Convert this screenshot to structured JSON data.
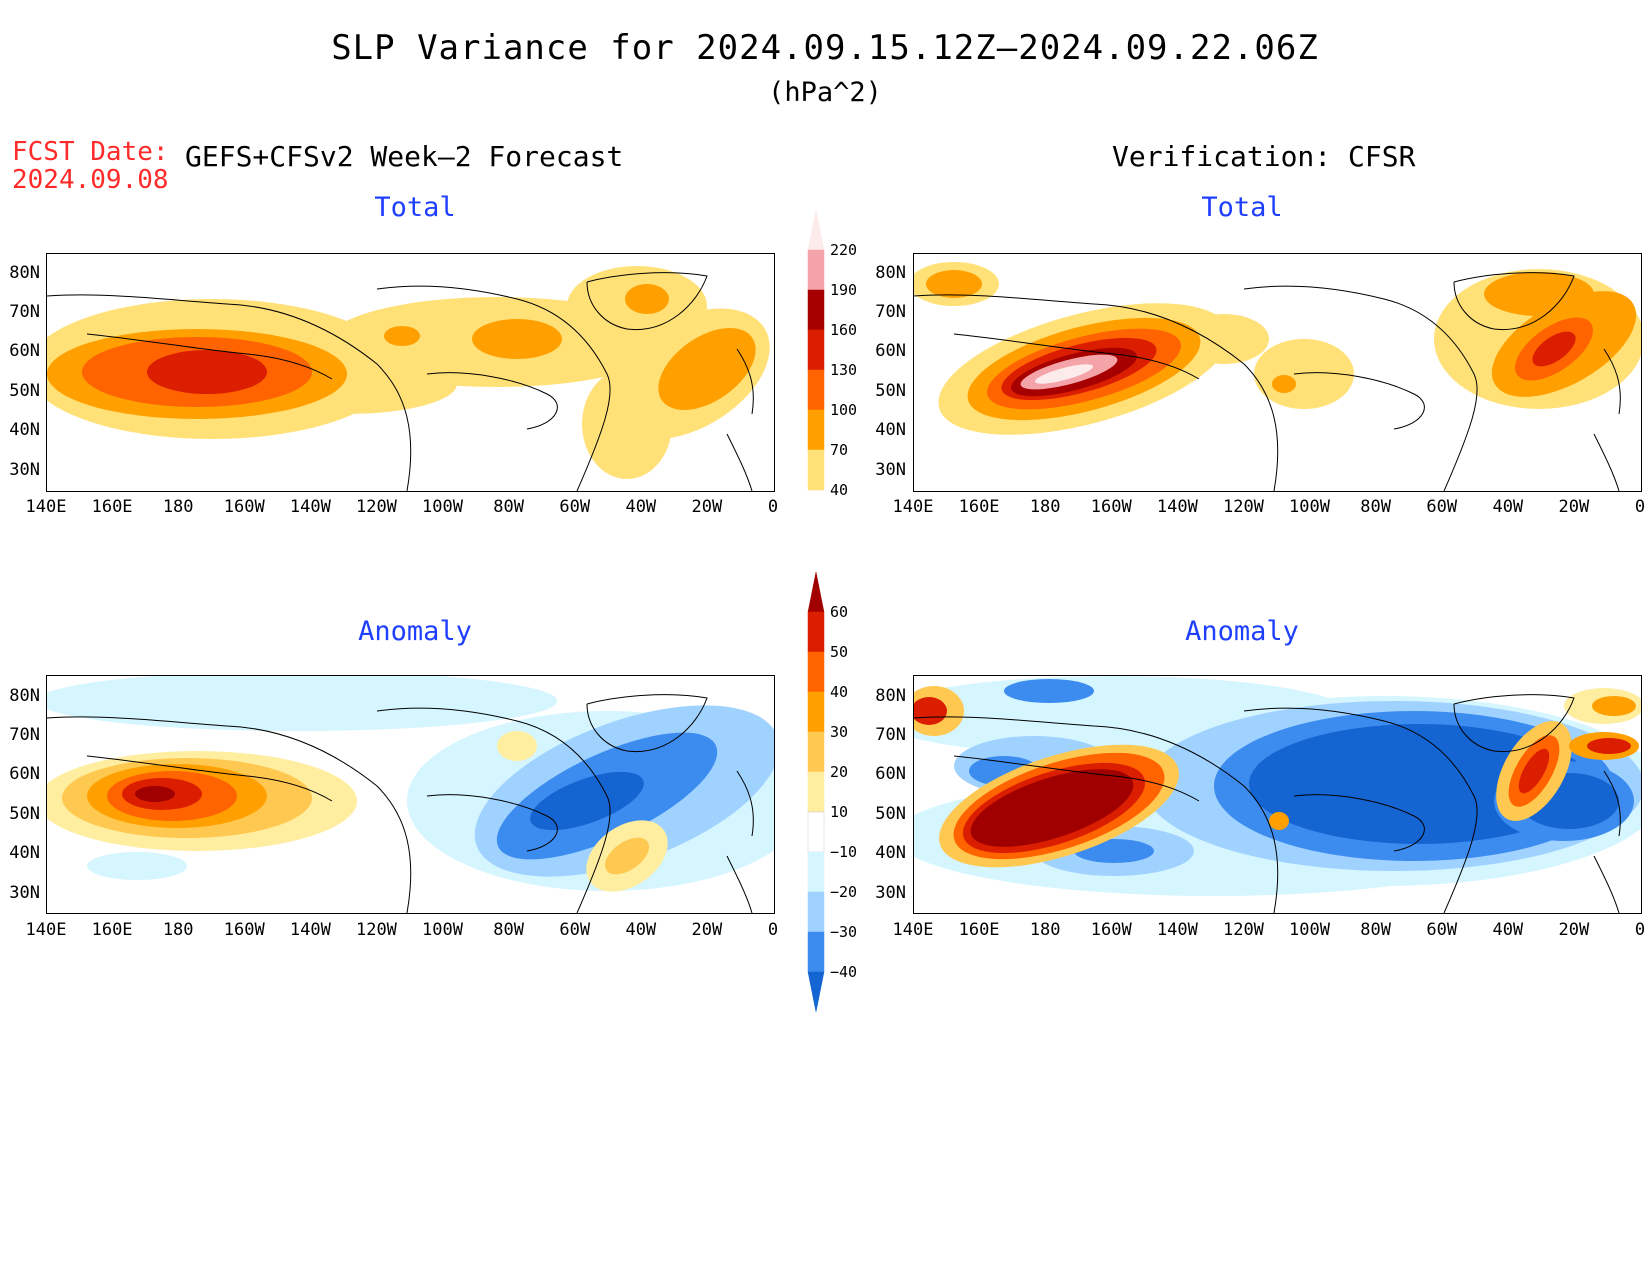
{
  "figure": {
    "title": "SLP Variance for 2024.09.15.12Z–2024.09.22.06Z",
    "units": "(hPa^2)",
    "fcst_label_line1": "FCST Date:",
    "fcst_label_line2": "2024.09.08",
    "left_header": "GEFS+CFSv2 Week–2 Forecast",
    "right_header": "Verification: CFSR"
  },
  "panels": [
    {
      "id": "fc-total",
      "subtitle": "Total"
    },
    {
      "id": "ver-total",
      "subtitle": "Total"
    },
    {
      "id": "fc-anom",
      "subtitle": "Anomaly"
    },
    {
      "id": "ver-anom",
      "subtitle": "Anomaly"
    }
  ],
  "axes": {
    "lat_labels": [
      "80N",
      "70N",
      "60N",
      "50N",
      "40N",
      "30N"
    ],
    "lon_labels": [
      "140E",
      "160E",
      "180",
      "160W",
      "140W",
      "120W",
      "100W",
      "80W",
      "60W",
      "40W",
      "20W",
      "0"
    ]
  },
  "colorbars": {
    "total": {
      "labels": [
        "220",
        "190",
        "160",
        "130",
        "100",
        "70",
        "40"
      ],
      "colors": [
        "#fdebec",
        "#f4a4a8",
        "#a60000",
        "#dc1e00",
        "#ff6400",
        "#ffa000",
        "#ffe177"
      ]
    },
    "anomaly": {
      "labels": [
        "60",
        "50",
        "40",
        "30",
        "20",
        "10",
        "−10",
        "−20",
        "−30",
        "−40"
      ],
      "colors": [
        "#a00000",
        "#dc1e00",
        "#ff6400",
        "#ffa000",
        "#ffc850",
        "#ffeea0",
        "#ffffff",
        "#d5f5ff",
        "#a0d2ff",
        "#3c8cf0",
        "#1464d2"
      ]
    }
  },
  "map_data": {
    "projection": "cylindrical equidistant",
    "lon_range": [
      "140E",
      "0"
    ],
    "lat_range": [
      "25N",
      "85N"
    ]
  }
}
